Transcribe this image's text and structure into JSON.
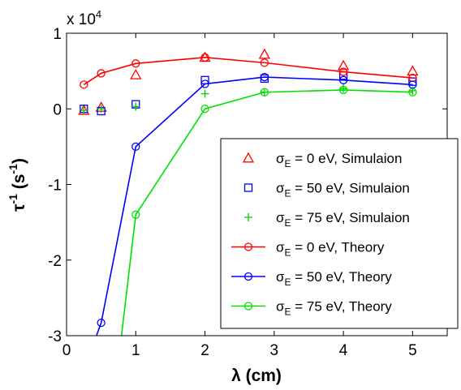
{
  "chart_data": {
    "type": "line",
    "title": "",
    "xlabel": "λ (cm)",
    "ylabel": "τ-1 (s-1)",
    "ylabel_parts": {
      "base": "τ",
      "sup1": "-1",
      "mid": " (s",
      "sup2": "-1",
      "end": ")"
    },
    "xlabel_parts": {
      "sym": "λ",
      "rest": " (cm)"
    },
    "multiplier": {
      "base": "x 10",
      "exp": "4"
    },
    "xlim": [
      0,
      5.5
    ],
    "ylim": [
      -3,
      1
    ],
    "xticks": [
      0,
      1,
      2,
      3,
      4,
      5
    ],
    "xtick_labels": [
      "0",
      "1",
      "2",
      "3",
      "4",
      "5"
    ],
    "yticks": [
      -3,
      -2,
      -1,
      0,
      1
    ],
    "ytick_labels": [
      "-3",
      "-2",
      "-1",
      "0",
      "1"
    ],
    "grid": false,
    "legend_position": "bottom-right",
    "series": [
      {
        "id": "sim0",
        "label_parts": {
          "sigma": "σ",
          "sub": "E",
          "rest": " = 0 eV,    Simulaion"
        },
        "color": "#ff0000",
        "marker": "triangle",
        "line": false,
        "x": [
          0.25,
          0.5,
          1.0,
          2.0,
          2.86,
          4.0,
          5.0
        ],
        "y": [
          -0.02,
          0.02,
          0.45,
          0.68,
          0.72,
          0.57,
          0.5
        ]
      },
      {
        "id": "sim50",
        "label_parts": {
          "sigma": "σ",
          "sub": "E",
          "rest": " = 50 eV,  Simulaion"
        },
        "color": "#0000ff",
        "marker": "square",
        "line": false,
        "x": [
          0.25,
          0.5,
          1.0,
          2.0,
          2.86,
          4.0,
          5.0
        ],
        "y": [
          0.0,
          -0.03,
          0.06,
          0.38,
          0.4,
          0.44,
          0.36
        ]
      },
      {
        "id": "sim75",
        "label_parts": {
          "sigma": "σ",
          "sub": "E",
          "rest": " = 75 eV,  Simulaion"
        },
        "color": "#00cc00",
        "marker": "plus",
        "line": false,
        "x": [
          0.25,
          0.5,
          1.0,
          2.0,
          2.86,
          4.0,
          5.0
        ],
        "y": [
          -0.02,
          0.0,
          0.03,
          0.2,
          0.22,
          0.27,
          0.24
        ]
      },
      {
        "id": "th0",
        "label_parts": {
          "sigma": "σ",
          "sub": "E",
          "rest": " = 0 eV,    Theory"
        },
        "color": "#ff0000",
        "marker": "circle",
        "line": true,
        "x": [
          0.25,
          0.5,
          1.0,
          2.0,
          2.86,
          4.0,
          5.0
        ],
        "y": [
          0.32,
          0.47,
          0.6,
          0.68,
          0.61,
          0.49,
          0.41
        ]
      },
      {
        "id": "th50",
        "label_parts": {
          "sigma": "σ",
          "sub": "E",
          "rest": " = 50 eV,  Theory"
        },
        "color": "#0000ff",
        "marker": "circle",
        "line": true,
        "x": [
          0.5,
          1.0,
          2.0,
          2.86,
          4.0,
          5.0
        ],
        "y": [
          -2.83,
          -0.5,
          0.33,
          0.42,
          0.38,
          0.32
        ],
        "extends_below_axis_from": [
          0.39,
          -3.0
        ]
      },
      {
        "id": "th75",
        "label_parts": {
          "sigma": "σ",
          "sub": "E",
          "rest": " = 75 eV,  Theory"
        },
        "color": "#00e000",
        "marker": "circle",
        "line": true,
        "x": [
          1.0,
          2.0,
          2.86,
          4.0,
          5.0
        ],
        "y": [
          -1.4,
          0.0,
          0.22,
          0.25,
          0.22
        ],
        "extends_below_axis_from": [
          0.78,
          -3.0
        ]
      }
    ]
  }
}
